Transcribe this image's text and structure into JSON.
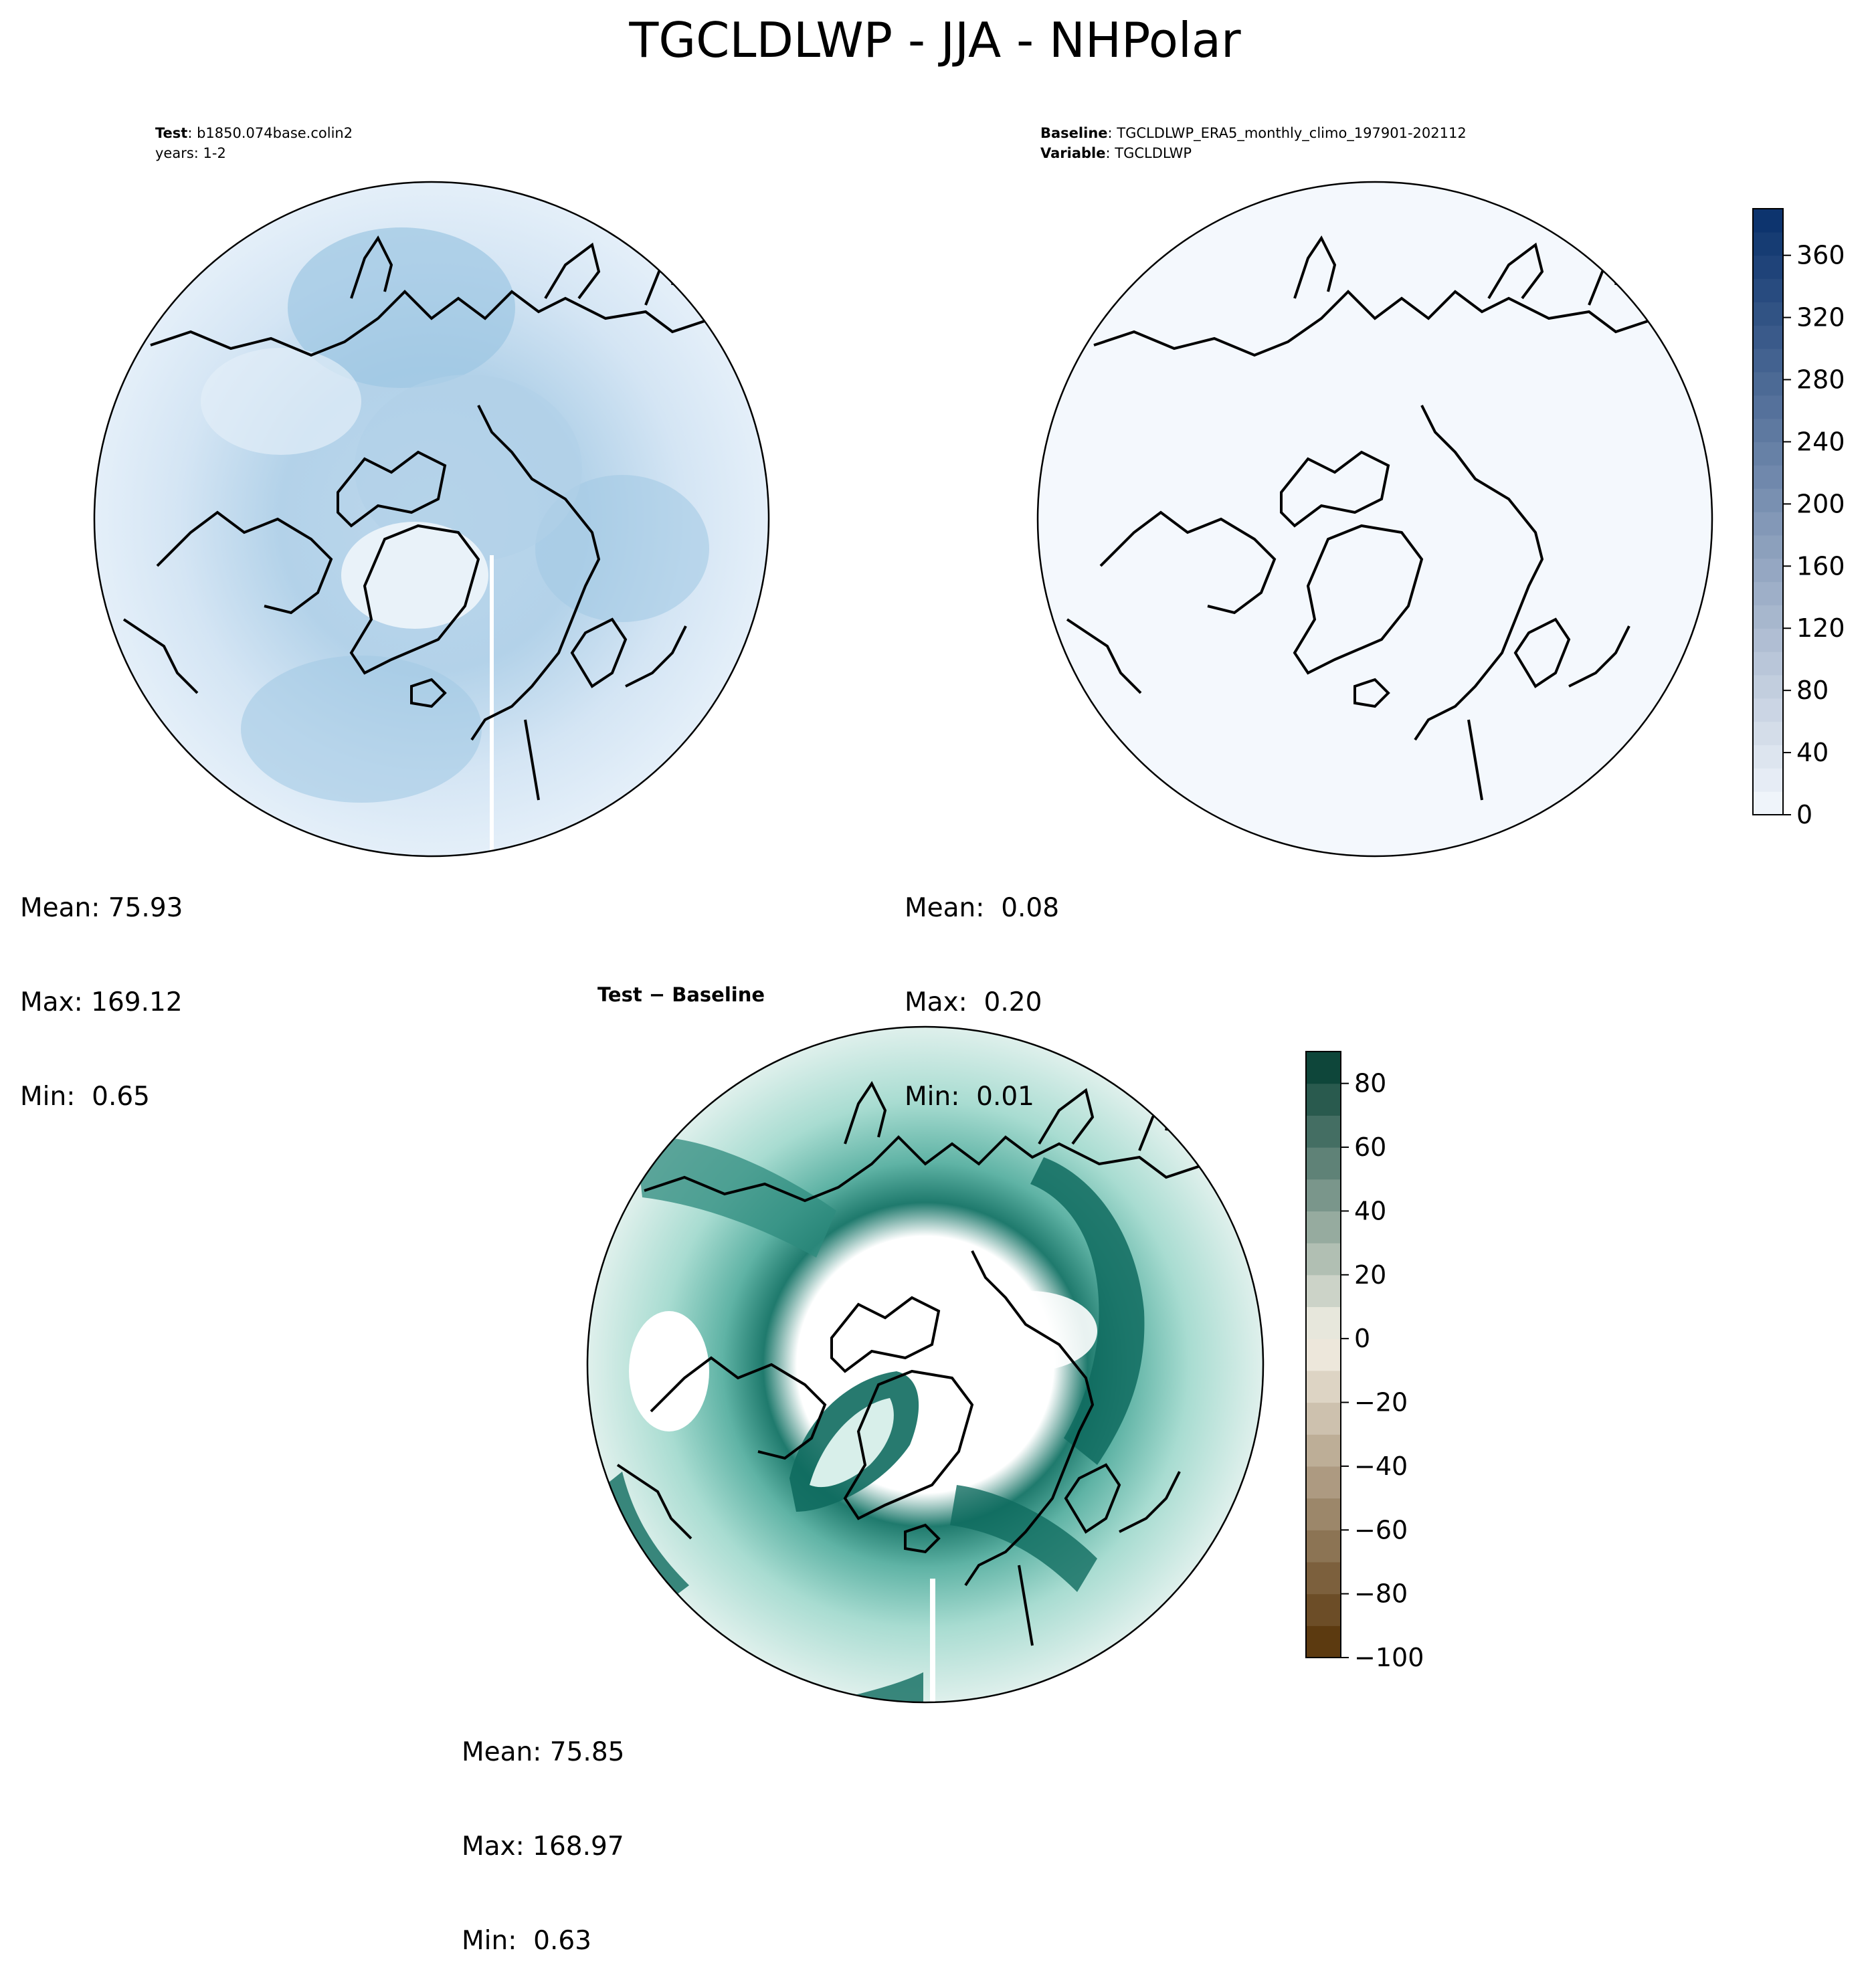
{
  "title": "TGCLDLWP - JJA - NHPolar",
  "panels": {
    "test": {
      "line1_key": "Test",
      "line1_value": "b1850.074base.colin2",
      "line2": "years: 1-2",
      "stats": [
        "Mean: 75.93",
        "Max: 169.12",
        "Min:  0.65"
      ]
    },
    "baseline": {
      "line1_key": "Baseline",
      "line1_value": "TGCLDLWP_ERA5_monthly_climo_197901-202112",
      "line2_key": "Variable",
      "line2_value": "TGCLDLWP",
      "stats": [
        "Mean:  0.08",
        "Max:  0.20",
        "Min:  0.01"
      ]
    },
    "diff": {
      "title": "Test − Baseline",
      "stats": [
        "Mean: 75.85",
        "Max: 168.97",
        "Min:  0.63"
      ]
    }
  },
  "chart_data": [
    {
      "type": "heatmap",
      "name": "test",
      "projection": "north polar stereographic",
      "colormap": "Blues",
      "colorbar_range": [
        0,
        390
      ],
      "colorbar_ticks": [
        "0",
        "40",
        "80",
        "120",
        "160",
        "200",
        "240",
        "280",
        "320",
        "360"
      ],
      "colorbar_tick_values": [
        0,
        40,
        80,
        120,
        160,
        200,
        240,
        280,
        320,
        360
      ],
      "mean": 75.93,
      "max": 169.12,
      "min": 0.65
    },
    {
      "type": "heatmap",
      "name": "baseline",
      "projection": "north polar stereographic",
      "colormap": "Blues",
      "colorbar_range": [
        0,
        390
      ],
      "mean": 0.08,
      "max": 0.2,
      "min": 0.01
    },
    {
      "type": "heatmap",
      "name": "difference",
      "projection": "north polar stereographic",
      "colormap": "BrBG",
      "colorbar_range": [
        -100,
        90
      ],
      "colorbar_ticks": [
        "−100",
        "−80",
        "−60",
        "−40",
        "−20",
        "0",
        "20",
        "40",
        "60",
        "80"
      ],
      "colorbar_tick_values": [
        -100,
        -80,
        -60,
        -40,
        -20,
        0,
        20,
        40,
        60,
        80
      ],
      "mean": 75.85,
      "max": 168.97,
      "min": 0.63
    }
  ],
  "colors": {
    "blues_low": "#f4f8fd",
    "blues_high": "#08306b",
    "brbg_low": "#543005",
    "brbg_mid": "#f5f1e6",
    "brbg_high": "#003c30"
  }
}
